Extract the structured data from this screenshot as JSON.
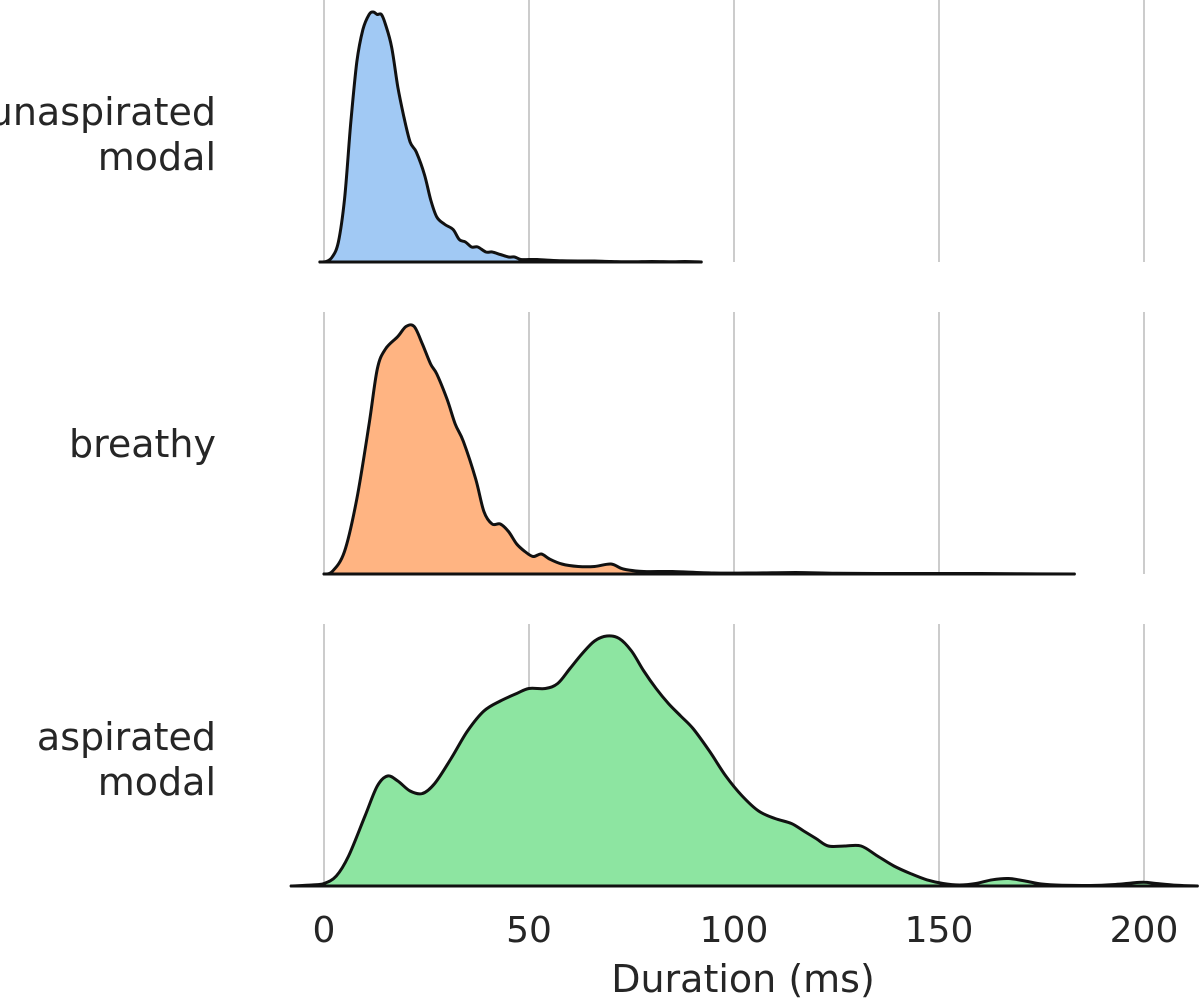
{
  "chart_data": {
    "type": "area",
    "subtype": "ridgeline-density",
    "xlabel": "Duration (ms)",
    "xlim": [
      -8,
      213
    ],
    "x_ticks": [
      0,
      50,
      100,
      150,
      200
    ],
    "x_tick_labels": [
      "0",
      "50",
      "100",
      "150",
      "200"
    ],
    "grid": "vertical",
    "series": [
      {
        "name": "unaspirated modal",
        "label_lines": [
          "unaspirated",
          "modal"
        ],
        "color": "#a1c9f4",
        "x_range": [
          -1,
          92
        ],
        "points": [
          [
            -1,
            0
          ],
          [
            0.5,
            0.002
          ],
          [
            2,
            0.02
          ],
          [
            3.5,
            0.08
          ],
          [
            5,
            0.25
          ],
          [
            6.5,
            0.55
          ],
          [
            8,
            0.8
          ],
          [
            9.5,
            0.93
          ],
          [
            11,
            0.99
          ],
          [
            12,
            1.0
          ],
          [
            13,
            0.99
          ],
          [
            14,
            0.99
          ],
          [
            15,
            0.95
          ],
          [
            16.5,
            0.86
          ],
          [
            18,
            0.7
          ],
          [
            19.5,
            0.58
          ],
          [
            21,
            0.48
          ],
          [
            22.5,
            0.44
          ],
          [
            24.5,
            0.35
          ],
          [
            26,
            0.25
          ],
          [
            27.5,
            0.18
          ],
          [
            29.5,
            0.15
          ],
          [
            31.5,
            0.13
          ],
          [
            33,
            0.09
          ],
          [
            34.5,
            0.08
          ],
          [
            36,
            0.06
          ],
          [
            37.5,
            0.06
          ],
          [
            39.5,
            0.04
          ],
          [
            41,
            0.04
          ],
          [
            43,
            0.03
          ],
          [
            45,
            0.02
          ],
          [
            46.5,
            0.02
          ],
          [
            48,
            0.01
          ],
          [
            50,
            0.01
          ],
          [
            52,
            0.01
          ],
          [
            54,
            0.008
          ],
          [
            58,
            0.005
          ],
          [
            62,
            0.004
          ],
          [
            66,
            0.004
          ],
          [
            70,
            0.002
          ],
          [
            75,
            0.001
          ],
          [
            80,
            0.002
          ],
          [
            85,
            0.001
          ],
          [
            88,
            0.002
          ],
          [
            92,
            0
          ]
        ]
      },
      {
        "name": "breathy",
        "label_lines": [
          "breathy"
        ],
        "color": "#ffb482",
        "x_range": [
          0,
          183
        ],
        "points": [
          [
            0,
            0
          ],
          [
            2,
            0.01
          ],
          [
            5,
            0.09
          ],
          [
            8,
            0.3
          ],
          [
            11,
            0.6
          ],
          [
            13,
            0.82
          ],
          [
            15,
            0.9
          ],
          [
            18,
            0.95
          ],
          [
            20,
            0.99
          ],
          [
            22,
            0.99
          ],
          [
            24,
            0.92
          ],
          [
            26,
            0.84
          ],
          [
            27.5,
            0.8
          ],
          [
            30,
            0.7
          ],
          [
            32,
            0.6
          ],
          [
            34,
            0.53
          ],
          [
            37,
            0.38
          ],
          [
            39,
            0.25
          ],
          [
            41,
            0.2
          ],
          [
            43,
            0.2
          ],
          [
            45,
            0.17
          ],
          [
            47,
            0.12
          ],
          [
            49,
            0.09
          ],
          [
            51,
            0.07
          ],
          [
            53,
            0.08
          ],
          [
            55,
            0.06
          ],
          [
            58,
            0.04
          ],
          [
            62,
            0.03
          ],
          [
            66,
            0.03
          ],
          [
            70,
            0.04
          ],
          [
            73,
            0.02
          ],
          [
            78,
            0.01
          ],
          [
            85,
            0.01
          ],
          [
            95,
            0.004
          ],
          [
            105,
            0.004
          ],
          [
            115,
            0.006
          ],
          [
            125,
            0.003
          ],
          [
            140,
            0.002
          ],
          [
            155,
            0.002
          ],
          [
            170,
            0.001
          ],
          [
            183,
            0
          ]
        ]
      },
      {
        "name": "aspirated modal",
        "label_lines": [
          "aspirated",
          "modal"
        ],
        "color": "#8de5a1",
        "x_range": [
          -8,
          213
        ],
        "points": [
          [
            -8,
            0
          ],
          [
            -3,
            0.004
          ],
          [
            0,
            0.01
          ],
          [
            3,
            0.04
          ],
          [
            6,
            0.12
          ],
          [
            10,
            0.28
          ],
          [
            13,
            0.4
          ],
          [
            15.5,
            0.44
          ],
          [
            18,
            0.42
          ],
          [
            21,
            0.38
          ],
          [
            24,
            0.37
          ],
          [
            27,
            0.41
          ],
          [
            31,
            0.51
          ],
          [
            35,
            0.62
          ],
          [
            39,
            0.7
          ],
          [
            43,
            0.74
          ],
          [
            47,
            0.77
          ],
          [
            50,
            0.79
          ],
          [
            54,
            0.79
          ],
          [
            57,
            0.81
          ],
          [
            60,
            0.87
          ],
          [
            63,
            0.93
          ],
          [
            66,
            0.98
          ],
          [
            69,
            1.0
          ],
          [
            72,
            0.99
          ],
          [
            75,
            0.94
          ],
          [
            78,
            0.86
          ],
          [
            81,
            0.79
          ],
          [
            84,
            0.73
          ],
          [
            87,
            0.68
          ],
          [
            90,
            0.63
          ],
          [
            94,
            0.54
          ],
          [
            98,
            0.44
          ],
          [
            102,
            0.36
          ],
          [
            106,
            0.3
          ],
          [
            110,
            0.27
          ],
          [
            114,
            0.25
          ],
          [
            117,
            0.22
          ],
          [
            120,
            0.19
          ],
          [
            123,
            0.16
          ],
          [
            127,
            0.16
          ],
          [
            131,
            0.16
          ],
          [
            135,
            0.12
          ],
          [
            139,
            0.08
          ],
          [
            143,
            0.05
          ],
          [
            147,
            0.025
          ],
          [
            151,
            0.01
          ],
          [
            155,
            0.004
          ],
          [
            159,
            0.01
          ],
          [
            163,
            0.025
          ],
          [
            167,
            0.03
          ],
          [
            171,
            0.02
          ],
          [
            175,
            0.008
          ],
          [
            180,
            0.003
          ],
          [
            187,
            0.002
          ],
          [
            193,
            0.006
          ],
          [
            197,
            0.012
          ],
          [
            200,
            0.015
          ],
          [
            203,
            0.01
          ],
          [
            208,
            0.003
          ],
          [
            213,
            0
          ]
        ]
      }
    ]
  }
}
